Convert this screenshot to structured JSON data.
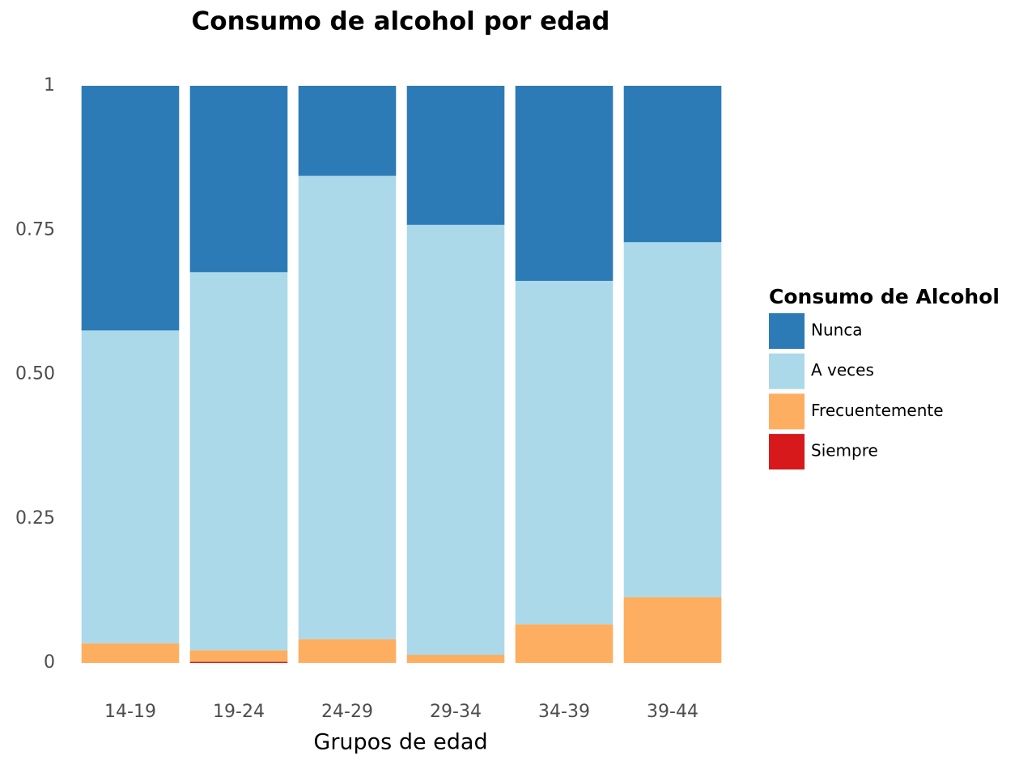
{
  "chart_data": {
    "type": "stacked_bar",
    "title": "Consumo de alcohol por edad",
    "x_label": "Grupos de edad",
    "legend_title": "Consumo de Alcohol",
    "legend_position": "right",
    "grid": false,
    "categories": [
      "14-19",
      "19-24",
      "24-29",
      "29-34",
      "34-39",
      "39-44"
    ],
    "series": [
      {
        "name": "Siempre",
        "color": "#d7191c",
        "values": [
          0,
          0.002,
          0,
          0,
          0,
          0
        ]
      },
      {
        "name": "Frecuentemente",
        "color": "#fdae61",
        "values": [
          0.034,
          0.02,
          0.041,
          0.014,
          0.067,
          0.114
        ]
      },
      {
        "name": "A veces",
        "color": "#abd9e9",
        "values": [
          0.542,
          0.655,
          0.803,
          0.745,
          0.595,
          0.615
        ]
      },
      {
        "name": "Nunca",
        "color": "#2c7bb6",
        "values": [
          0.424,
          0.323,
          0.156,
          0.241,
          0.338,
          0.271
        ]
      }
    ],
    "ylim": [
      0,
      1
    ],
    "yticks": [
      0,
      0.25,
      {
        "value": 0.5,
        "label": "0.50"
      },
      0.75,
      1
    ]
  }
}
